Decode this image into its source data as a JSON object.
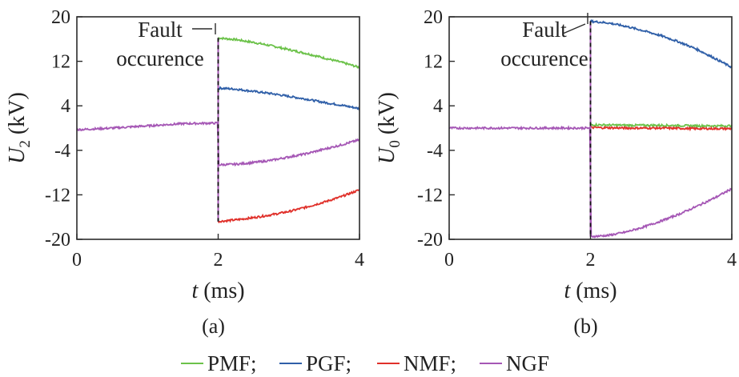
{
  "chart_data": [
    {
      "type": "line",
      "panel_label": "(a)",
      "ylabel_main": "U",
      "ylabel_sub": "2",
      "ylabel_unit": " (kV)",
      "xlabel_var": "t",
      "xlabel_unit": " (ms)",
      "xlim": [
        0,
        4
      ],
      "ylim": [
        -20,
        20
      ],
      "xticks": [
        0,
        2,
        4
      ],
      "yticks": [
        20,
        12,
        4,
        -4,
        -12,
        -20
      ],
      "annotation": [
        "Fault",
        "occurence"
      ],
      "fault_time": 2,
      "series": [
        {
          "name": "PMF",
          "color": "#6cc24a",
          "x": [
            2,
            2.25,
            2.5,
            2.75,
            3,
            3.25,
            3.5,
            3.75,
            4
          ],
          "y": [
            16.2,
            15.9,
            15.4,
            14.8,
            14.1,
            13.4,
            12.6,
            11.8,
            10.9
          ]
        },
        {
          "name": "PGF",
          "color": "#2f5fa8",
          "x": [
            2,
            2.25,
            2.5,
            2.75,
            3,
            3.25,
            3.5,
            3.75,
            4
          ],
          "y": [
            7.2,
            7.0,
            6.6,
            6.2,
            5.7,
            5.2,
            4.6,
            4.1,
            3.5
          ]
        },
        {
          "name": "NMF",
          "color": "#e0302a",
          "x": [
            2,
            2.25,
            2.5,
            2.75,
            3,
            3.25,
            3.5,
            3.75,
            4
          ],
          "y": [
            -16.8,
            -16.5,
            -16.1,
            -15.6,
            -15.0,
            -14.2,
            -13.3,
            -12.3,
            -11.1
          ]
        },
        {
          "name": "NGF",
          "color": "#a557b5",
          "x": [
            0,
            0.5,
            1,
            1.5,
            1.99,
            2.01,
            2.25,
            2.5,
            2.75,
            3,
            3.25,
            3.5,
            3.75,
            4
          ],
          "y": [
            -0.3,
            0.0,
            0.4,
            0.8,
            0.9,
            -6.6,
            -6.5,
            -6.2,
            -5.8,
            -5.2,
            -4.6,
            -3.8,
            -3.0,
            -2.1
          ]
        }
      ]
    },
    {
      "type": "line",
      "panel_label": "(b)",
      "ylabel_main": "U",
      "ylabel_sub": "0",
      "ylabel_unit": " (kV)",
      "xlabel_var": "t",
      "xlabel_unit": " (ms)",
      "xlim": [
        0,
        4
      ],
      "ylim": [
        -20,
        20
      ],
      "xticks": [
        0,
        2,
        4
      ],
      "yticks": [
        20,
        12,
        4,
        -4,
        -12,
        -20
      ],
      "annotation": [
        "Fault",
        "occurence"
      ],
      "fault_time": 2,
      "series": [
        {
          "name": "PMF",
          "color": "#6cc24a",
          "x": [
            2,
            2.5,
            3,
            3.5,
            4
          ],
          "y": [
            0.6,
            0.5,
            0.5,
            0.4,
            0.4
          ]
        },
        {
          "name": "PGF",
          "color": "#2f5fa8",
          "x": [
            2,
            2.25,
            2.5,
            2.75,
            3,
            3.25,
            3.5,
            3.75,
            4
          ],
          "y": [
            19.2,
            18.9,
            18.3,
            17.5,
            16.6,
            15.5,
            14.2,
            12.6,
            10.9
          ]
        },
        {
          "name": "NMF",
          "color": "#e0302a",
          "x": [
            2,
            2.5,
            3,
            3.5,
            4
          ],
          "y": [
            0.1,
            0.0,
            0.0,
            -0.1,
            -0.1
          ]
        },
        {
          "name": "NGF",
          "color": "#a557b5",
          "x": [
            0,
            0.5,
            1,
            1.5,
            1.99,
            2.01,
            2.25,
            2.5,
            2.75,
            3,
            3.25,
            3.5,
            3.75,
            4
          ],
          "y": [
            0.0,
            0.0,
            0.0,
            0.0,
            0.0,
            -19.5,
            -19.3,
            -18.7,
            -17.8,
            -16.7,
            -15.5,
            -14.1,
            -12.6,
            -10.9
          ]
        }
      ]
    }
  ],
  "legend": [
    {
      "name": "PMF",
      "color": "#6cc24a",
      "suffix": ";"
    },
    {
      "name": "PGF",
      "color": "#2f5fa8",
      "suffix": ";"
    },
    {
      "name": "NMF",
      "color": "#e0302a",
      "suffix": ";"
    },
    {
      "name": "NGF",
      "color": "#a557b5",
      "suffix": ""
    }
  ]
}
